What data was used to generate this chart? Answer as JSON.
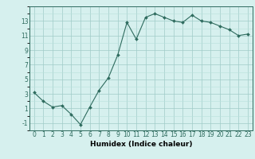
{
  "x": [
    0,
    1,
    2,
    3,
    4,
    5,
    6,
    7,
    8,
    9,
    10,
    11,
    12,
    13,
    14,
    15,
    16,
    17,
    18,
    19,
    20,
    21,
    22,
    23
  ],
  "y": [
    3.2,
    2.0,
    1.2,
    1.4,
    0.2,
    -1.2,
    1.2,
    3.5,
    5.2,
    8.3,
    12.8,
    10.5,
    13.5,
    14.0,
    13.5,
    13.0,
    12.8,
    13.8,
    13.0,
    12.8,
    12.3,
    11.8,
    11.0,
    11.2
  ],
  "xlabel": "Humidex (Indice chaleur)",
  "line_color": "#2e6b5e",
  "marker_color": "#2e6b5e",
  "bg_color": "#d6f0ee",
  "grid_color": "#a0ccc8",
  "grid_color2": "#b8e0dc",
  "ylim": [
    -2,
    15
  ],
  "xlim": [
    -0.5,
    23.5
  ],
  "yticks": [
    -1,
    1,
    3,
    5,
    7,
    9,
    11,
    13
  ],
  "xticks": [
    0,
    1,
    2,
    3,
    4,
    5,
    6,
    7,
    8,
    9,
    10,
    11,
    12,
    13,
    14,
    15,
    16,
    17,
    18,
    19,
    20,
    21,
    22,
    23
  ],
  "tick_fontsize": 5.5,
  "xlabel_fontsize": 6.5
}
